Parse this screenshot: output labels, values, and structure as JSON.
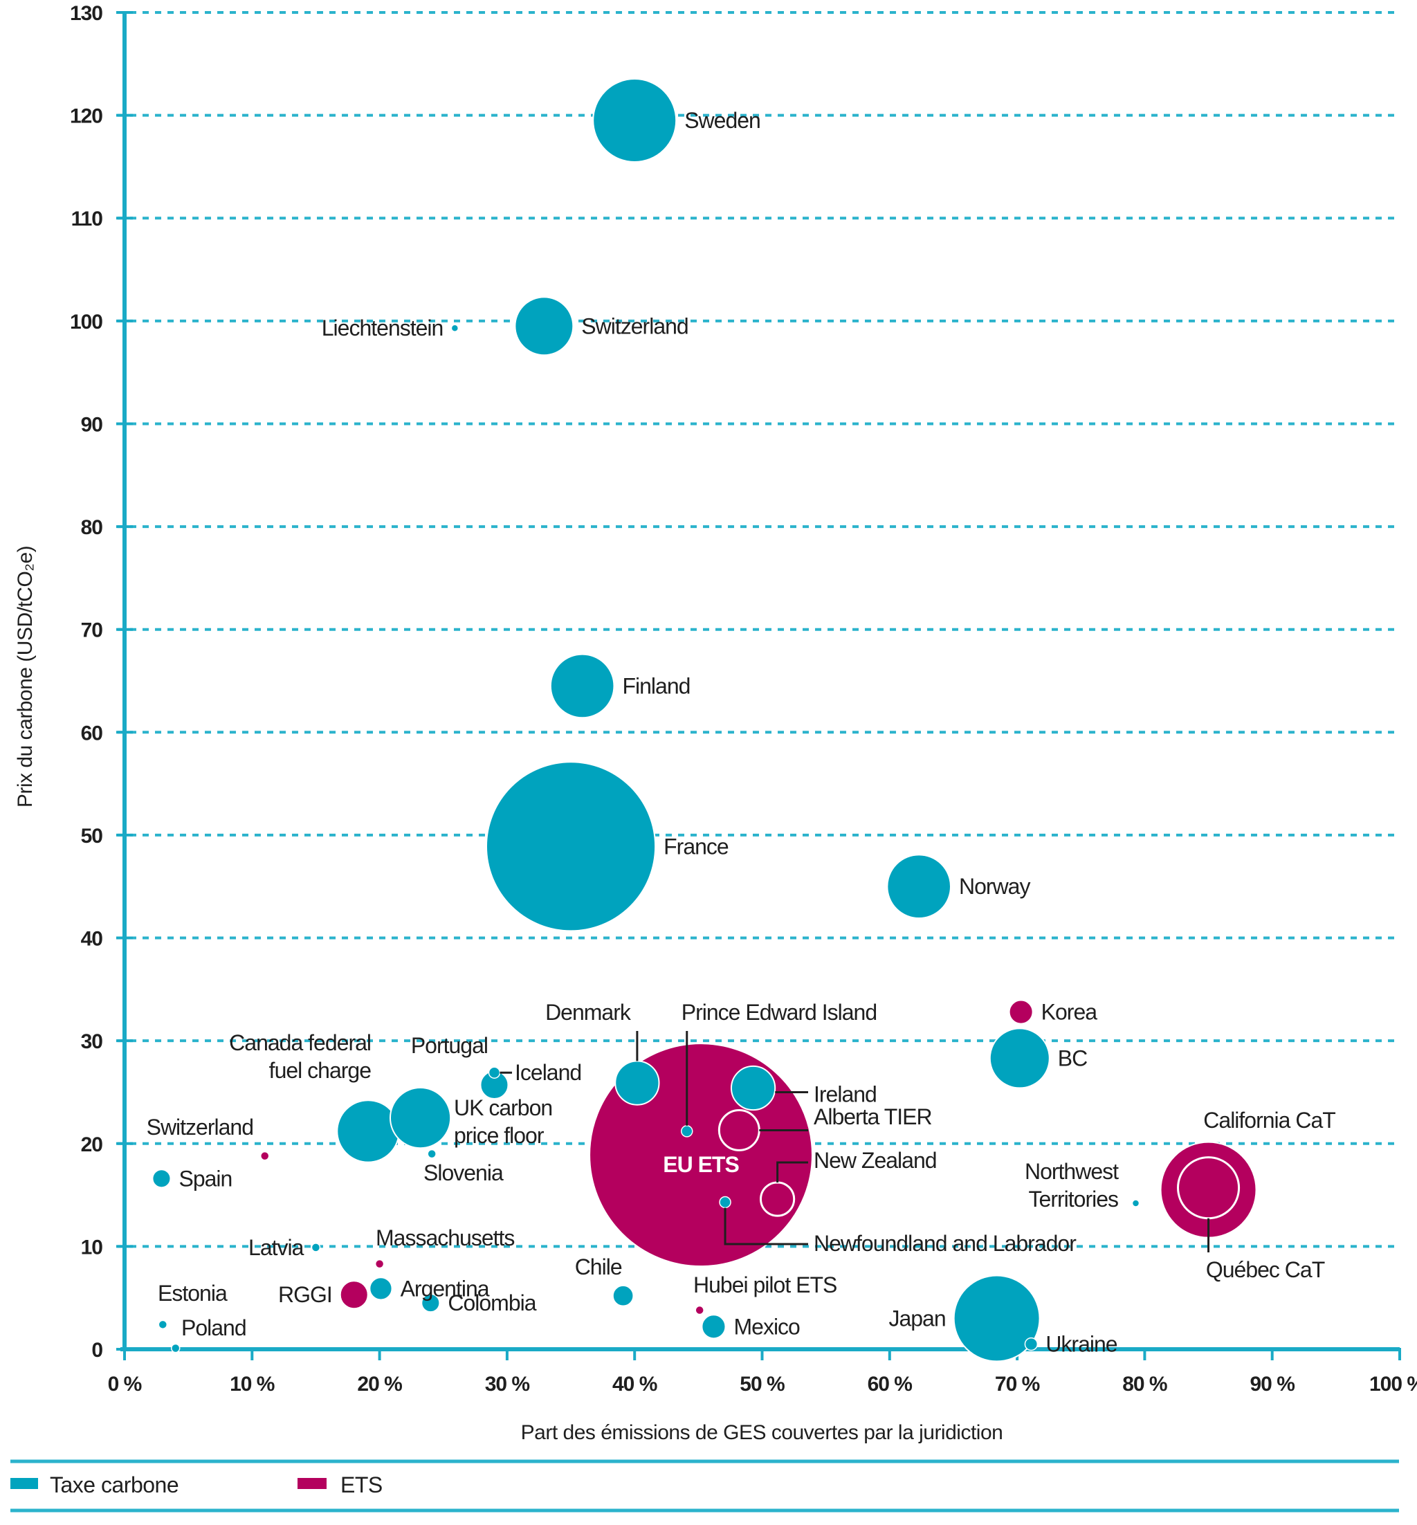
{
  "chart_data": {
    "type": "scatter",
    "subtype": "bubble",
    "title": "",
    "xlabel": "Part des émissions de GES couvertes par la juridiction",
    "ylabel": "Prix du carbone  (USD/tCO₂e)",
    "xlim": [
      0,
      100
    ],
    "ylim": [
      0,
      130
    ],
    "x_unit": "%",
    "x_ticks": [
      0,
      10,
      20,
      30,
      40,
      50,
      60,
      70,
      80,
      90,
      100
    ],
    "x_tick_labels": [
      "0 %",
      "10 %",
      "20 %",
      "30 %",
      "40 %",
      "50 %",
      "60 %",
      "70 %",
      "80 %",
      "90 %",
      "100 %"
    ],
    "y_ticks": [
      0,
      10,
      20,
      30,
      40,
      50,
      60,
      70,
      80,
      90,
      100,
      110,
      120,
      130
    ],
    "y_tick_labels": [
      "0",
      "10",
      "20",
      "30",
      "40",
      "50",
      "60",
      "70",
      "80",
      "90",
      "100",
      "110",
      "120",
      "130"
    ],
    "grid": "horizontal-dashed",
    "legend_position": "bottom-left",
    "size_note": "bubble size = relative volume of covered emissions (relative index, estimated)",
    "series": [
      {
        "name": "Taxe carbone",
        "key": "tax",
        "color": "#00A3BE"
      },
      {
        "name": "ETS",
        "key": "ets",
        "color": "#B4005E"
      }
    ],
    "points": [
      {
        "label": "Sweden",
        "series": "tax",
        "x": 40.0,
        "y": 119.5,
        "size": 36,
        "label_pos": "right"
      },
      {
        "label": "Liechtenstein",
        "series": "tax",
        "x": 25.9,
        "y": 99.3,
        "size": 0.25,
        "label_pos": "left"
      },
      {
        "label": "Switzerland",
        "series": "tax",
        "x": 32.9,
        "y": 99.5,
        "size": 17.6,
        "label_pos": "right"
      },
      {
        "label": "Finland",
        "series": "tax",
        "x": 35.9,
        "y": 64.5,
        "size": 21,
        "label_pos": "right"
      },
      {
        "label": "France",
        "series": "tax",
        "x": 35.0,
        "y": 48.9,
        "size": 149,
        "label_pos": "right"
      },
      {
        "label": "Norway",
        "series": "tax",
        "x": 62.3,
        "y": 45.0,
        "size": 21,
        "label_pos": "right"
      },
      {
        "label": "Korea",
        "series": "ets",
        "x": 70.3,
        "y": 32.8,
        "size": 2.9,
        "label_pos": "right"
      },
      {
        "label": "BC",
        "series": "tax",
        "x": 70.2,
        "y": 28.3,
        "size": 18.5,
        "label_pos": "right"
      },
      {
        "label": "EU ETS",
        "series": "ets",
        "x": 45.2,
        "y": 18.9,
        "size": 259,
        "label_pos": "inside"
      },
      {
        "label": "Denmark",
        "series": "tax",
        "x": 40.2,
        "y": 25.9,
        "size": 10,
        "label_pos": "leader-top"
      },
      {
        "label": "Prince Edward Island",
        "series": "tax",
        "x": 44.1,
        "y": 21.2,
        "size": 0.64,
        "label_pos": "leader-top"
      },
      {
        "label": "Ireland",
        "series": "tax",
        "x": 49.3,
        "y": 25.4,
        "size": 10,
        "label_pos": "leader-right"
      },
      {
        "label": "Alberta TIER",
        "series": "tax",
        "x": 48.2,
        "y": 21.3,
        "size": 8.4,
        "style": "outline",
        "label_pos": "leader-right"
      },
      {
        "label": "New Zealand",
        "series": "ets",
        "x": 51.2,
        "y": 14.6,
        "size": 5.8,
        "style": "outline",
        "label_pos": "leader-right"
      },
      {
        "label": "Newfoundland and Labrador",
        "series": "tax",
        "x": 47.1,
        "y": 14.3,
        "size": 0.64,
        "label_pos": "leader-bottom-right"
      },
      {
        "label": "Portugal",
        "series": "tax",
        "x": 29.0,
        "y": 25.7,
        "size": 4,
        "label_pos": "top-left"
      },
      {
        "label": "Iceland",
        "series": "tax",
        "x": 29.0,
        "y": 26.9,
        "size": 0.64,
        "label_pos": "leader-right"
      },
      {
        "label": "Canada federal fuel charge",
        "series": "tax",
        "x": 19.1,
        "y": 21.2,
        "size": 20,
        "label_pos": "top-left"
      },
      {
        "label": "UK carbon price floor",
        "series": "tax",
        "x": 23.2,
        "y": 22.5,
        "size": 19,
        "label_pos": "right"
      },
      {
        "label": "Slovenia",
        "series": "tax",
        "x": 24.1,
        "y": 19.0,
        "size": 0.36,
        "label_pos": "bottom"
      },
      {
        "label": "Switzerland",
        "series": "ets",
        "x": 11.0,
        "y": 18.8,
        "size": 0.36,
        "label_pos": "top-left"
      },
      {
        "label": "Spain",
        "series": "tax",
        "x": 2.9,
        "y": 16.6,
        "size": 1.7,
        "label_pos": "right"
      },
      {
        "label": "Latvia",
        "series": "tax",
        "x": 15.0,
        "y": 9.9,
        "size": 0.36,
        "label_pos": "left"
      },
      {
        "label": "Massachusetts",
        "series": "ets",
        "x": 20.0,
        "y": 8.3,
        "size": 0.36,
        "label_pos": "top-right"
      },
      {
        "label": "Argentina",
        "series": "tax",
        "x": 20.1,
        "y": 5.9,
        "size": 2.6,
        "label_pos": "right"
      },
      {
        "label": "RGGI",
        "series": "ets",
        "x": 18.0,
        "y": 5.3,
        "size": 4,
        "label_pos": "left"
      },
      {
        "label": "Colombia",
        "series": "tax",
        "x": 24.0,
        "y": 4.5,
        "size": 1.7,
        "label_pos": "right"
      },
      {
        "label": "Estonia",
        "series": "tax",
        "x": 3.0,
        "y": 2.4,
        "size": 0.36,
        "label_pos": "top"
      },
      {
        "label": "Poland",
        "series": "tax",
        "x": 4.0,
        "y": 0.1,
        "size": 0.36,
        "label_pos": "top-right"
      },
      {
        "label": "Chile",
        "series": "tax",
        "x": 39.1,
        "y": 5.2,
        "size": 2.2,
        "label_pos": "top-left"
      },
      {
        "label": "Hubei pilot ETS",
        "series": "ets",
        "x": 45.1,
        "y": 3.8,
        "size": 0.36,
        "label_pos": "top-right"
      },
      {
        "label": "Mexico",
        "series": "tax",
        "x": 46.2,
        "y": 2.2,
        "size": 2.9,
        "label_pos": "right"
      },
      {
        "label": "Japan",
        "series": "tax",
        "x": 68.4,
        "y": 3.0,
        "size": 38.4,
        "label_pos": "left"
      },
      {
        "label": "Ukraine",
        "series": "tax",
        "x": 71.1,
        "y": 0.5,
        "size": 0.8,
        "label_pos": "right"
      },
      {
        "label": "Northwest Territories",
        "series": "tax",
        "x": 79.3,
        "y": 14.2,
        "size": 0.25,
        "label_pos": "left"
      },
      {
        "label": "California CaT",
        "series": "ets",
        "x": 85.0,
        "y": 15.5,
        "size": 47.6,
        "label_pos": "top"
      },
      {
        "label": "Québec CaT",
        "series": "ets",
        "x": 85.0,
        "y": 15.7,
        "size": 19.4,
        "style": "outline",
        "label_pos": "leader-bottom"
      }
    ]
  },
  "legend": {
    "items": [
      {
        "label": "Taxe carbone",
        "color": "#00A3BE"
      },
      {
        "label": "ETS",
        "color": "#B4005E"
      }
    ]
  }
}
